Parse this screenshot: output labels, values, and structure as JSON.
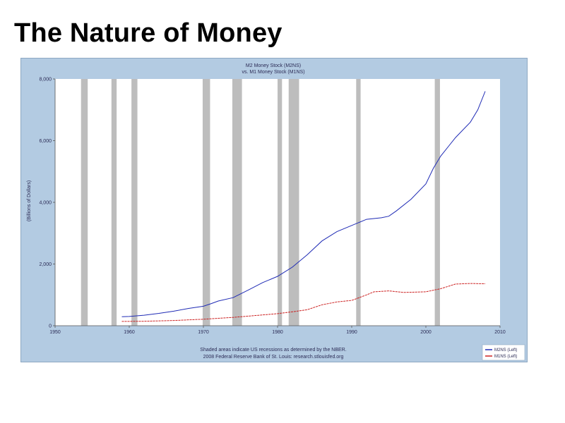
{
  "slide": {
    "title": "The Nature of Money"
  },
  "colors": {
    "frame_bg": "#b3cbe2",
    "plot_bg": "#ffffff",
    "recession": "#bdbdbd",
    "m2": "#1f2bb5",
    "m1": "#cc2020"
  },
  "chart_data": {
    "type": "line",
    "title": "M2 Money Stock (M2NS)",
    "subtitle": "vs. M1 Money Stock (M1NS)",
    "ylabel": "(Billions of Dollars)",
    "xlim": [
      1950,
      2010
    ],
    "ylim": [
      0,
      8000
    ],
    "grid": false,
    "legend_position": "bottom-right",
    "x_ticks": [
      1950,
      1960,
      1970,
      1980,
      1990,
      2000,
      2010
    ],
    "x_tick_labels": [
      "1950",
      "1960",
      "1970",
      "1980",
      "1990",
      "2000",
      "2010"
    ],
    "y_ticks": [
      0,
      2000,
      4000,
      6000,
      8000
    ],
    "y_tick_labels": [
      "0",
      "2,000",
      "4,000",
      "6,000",
      "8,000"
    ],
    "recessions": [
      [
        1953.5,
        1954.4
      ],
      [
        1957.6,
        1958.3
      ],
      [
        1960.3,
        1961.1
      ],
      [
        1969.9,
        1970.9
      ],
      [
        1973.9,
        1975.2
      ],
      [
        1980.0,
        1980.6
      ],
      [
        1981.5,
        1982.9
      ],
      [
        1990.6,
        1991.2
      ],
      [
        2001.2,
        2001.9
      ]
    ],
    "series": [
      {
        "name": "M2NS (Left)",
        "color": "#1f2bb5",
        "x": [
          1959,
          1960,
          1962,
          1964,
          1966,
          1968,
          1970,
          1971,
          1972,
          1974,
          1976,
          1978,
          1980,
          1982,
          1984,
          1986,
          1988,
          1990,
          1992,
          1994,
          1995,
          1996,
          1998,
          2000,
          2001,
          2002,
          2004,
          2006,
          2007,
          2008
        ],
        "values": [
          290,
          300,
          340,
          400,
          470,
          560,
          630,
          710,
          800,
          910,
          1150,
          1400,
          1600,
          1900,
          2300,
          2750,
          3050,
          3250,
          3450,
          3500,
          3550,
          3720,
          4100,
          4600,
          5100,
          5500,
          6100,
          6600,
          7000,
          7600
        ]
      },
      {
        "name": "M1NS (Left)",
        "color": "#cc2020",
        "x": [
          1959,
          1962,
          1966,
          1970,
          1974,
          1978,
          1980,
          1982,
          1984,
          1986,
          1988,
          1990,
          1992,
          1993,
          1995,
          1997,
          2000,
          2002,
          2004,
          2006,
          2008
        ],
        "values": [
          140,
          145,
          170,
          210,
          270,
          350,
          390,
          450,
          520,
          680,
          770,
          820,
          1000,
          1100,
          1130,
          1080,
          1100,
          1200,
          1350,
          1370,
          1360
        ]
      }
    ],
    "footnote": [
      "Shaded areas indicate US recessions as determined by the NBER.",
      "2008 Federal Reserve Bank of St. Louis: research.stlouisfed.org"
    ]
  }
}
